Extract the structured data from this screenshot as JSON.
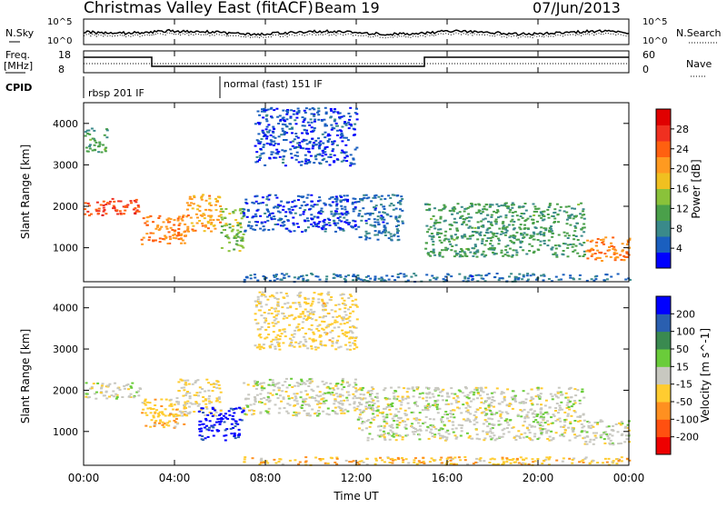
{
  "header": {
    "station": "Christmas Valley East (fitACF)",
    "beam": "Beam 19",
    "date": "07/Jun/2013"
  },
  "top_panels": {
    "nsky_label": "N.Sky",
    "nsearch_label": "N.Search",
    "freq_label_line1": "Freq.",
    "freq_label_line2": "[MHz]",
    "nave_label": "Nave",
    "cpid_label": "CPID",
    "noise_ticks_left": [
      "10^5",
      "10^0"
    ],
    "noise_ticks_right": [
      "10^5",
      "10^0"
    ],
    "freq_ticks_left": [
      "18",
      "8"
    ],
    "nave_ticks_right": [
      "60",
      "0"
    ],
    "cpid_segments": [
      {
        "label": "rbsp 201 IF",
        "start_hour": 0
      },
      {
        "label": "normal (fast) 151 IF",
        "start_hour": 6
      }
    ]
  },
  "x_axis": {
    "label": "Time UT",
    "ticks": [
      "00:00",
      "04:00",
      "08:00",
      "12:00",
      "16:00",
      "20:00",
      "00:00"
    ]
  },
  "y_axis": {
    "label": "Slant Range [km]",
    "ticks": [
      "1000",
      "2000",
      "3000",
      "4000"
    ]
  },
  "power_scale": {
    "label": "Power [dB]",
    "ticks": [
      "28",
      "24",
      "20",
      "16",
      "12",
      "8",
      "4"
    ],
    "colors": [
      "#0000ff",
      "#1a5fbf",
      "#3a8a8a",
      "#4aa04a",
      "#8ac23a",
      "#f0c020",
      "#ff9a20",
      "#ff6010",
      "#f03020",
      "#e00000"
    ]
  },
  "velocity_scale": {
    "label": "Velocity [m s^-1]",
    "ticks": [
      "200",
      "100",
      "50",
      "15",
      "-15",
      "-50",
      "-100",
      "-200"
    ],
    "colors": [
      "#0000ff",
      "#2a5fb0",
      "#3a8a50",
      "#6acc3a",
      "#c8c8c0",
      "#ffcc30",
      "#ff9020",
      "#ff5010",
      "#ee0000"
    ]
  },
  "chart_data": {
    "type": "heatmap",
    "title": "Christmas Valley East (fitACF)",
    "xlabel": "Time UT",
    "ylabel": "Slant Range [km]",
    "xlim": [
      0,
      24
    ],
    "ylim": [
      180,
      4500
    ],
    "panels": [
      {
        "name": "Power [dB]",
        "clim": [
          0,
          32
        ],
        "regions": [
          {
            "t": [
              0.0,
              2.5
            ],
            "r": [
              1800,
              2200
            ],
            "v": 26
          },
          {
            "t": [
              0.0,
              1.0
            ],
            "r": [
              3300,
              3900
            ],
            "v": 10
          },
          {
            "t": [
              2.5,
              4.5
            ],
            "r": [
              1100,
              1800
            ],
            "v": 22
          },
          {
            "t": [
              4.5,
              6.0
            ],
            "r": [
              1400,
              2300
            ],
            "v": 20
          },
          {
            "t": [
              6.0,
              7.0
            ],
            "r": [
              900,
              2000
            ],
            "v": 14
          },
          {
            "t": [
              7.0,
              12.0
            ],
            "r": [
              1400,
              2300
            ],
            "v": 4
          },
          {
            "t": [
              7.5,
              12.0
            ],
            "r": [
              3000,
              4400
            ],
            "v": 4
          },
          {
            "t": [
              12.0,
              14.0
            ],
            "r": [
              1200,
              2300
            ],
            "v": 6
          },
          {
            "t": [
              15.0,
              22.0
            ],
            "r": [
              800,
              2100
            ],
            "v": 10
          },
          {
            "t": [
              22.0,
              24.0
            ],
            "r": [
              700,
              1300
            ],
            "v": 22
          },
          {
            "t": [
              7.0,
              24.0
            ],
            "r": [
              200,
              400
            ],
            "v": 6
          }
        ]
      },
      {
        "name": "Velocity [m s^-1]",
        "clim": [
          -250,
          250
        ],
        "regions": [
          {
            "t": [
              0.0,
              2.5
            ],
            "r": [
              1800,
              2200
            ],
            "v": 0
          },
          {
            "t": [
              2.5,
              4.5
            ],
            "r": [
              1100,
              1800
            ],
            "v": -60
          },
          {
            "t": [
              4.0,
              6.0
            ],
            "r": [
              1400,
              2300
            ],
            "v": -20
          },
          {
            "t": [
              5.0,
              7.0
            ],
            "r": [
              800,
              1600
            ],
            "v": 220
          },
          {
            "t": [
              7.0,
              12.0
            ],
            "r": [
              1400,
              2300
            ],
            "v": 0
          },
          {
            "t": [
              7.5,
              12.0
            ],
            "r": [
              3000,
              4400
            ],
            "v": -40
          },
          {
            "t": [
              12.0,
              22.0
            ],
            "r": [
              800,
              2100
            ],
            "v": 0
          },
          {
            "t": [
              22.0,
              24.0
            ],
            "r": [
              700,
              1300
            ],
            "v": 0
          },
          {
            "t": [
              7.0,
              24.0
            ],
            "r": [
              200,
              400
            ],
            "v": -60
          }
        ]
      }
    ]
  }
}
